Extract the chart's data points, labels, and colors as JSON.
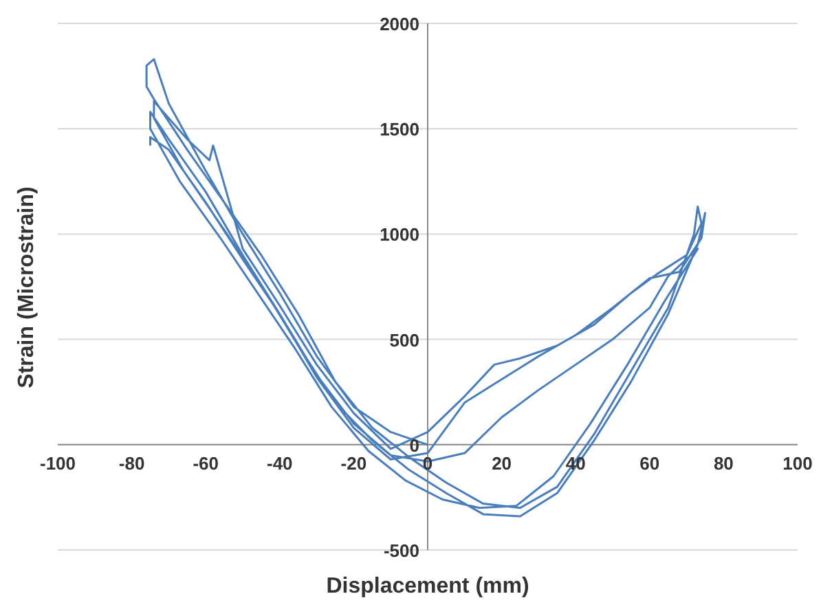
{
  "chart_data": {
    "type": "line",
    "xlabel": "Displacement (mm)",
    "ylabel": "Strain (Microstrain)",
    "xlim": [
      -100,
      100
    ],
    "ylim": [
      -500,
      2000
    ],
    "xticks": [
      -100,
      -80,
      -60,
      -40,
      -20,
      0,
      20,
      40,
      60,
      80,
      100
    ],
    "yticks": [
      -500,
      0,
      500,
      1000,
      1500,
      2000
    ],
    "grid": "y",
    "marker": "none",
    "line_style": "solid",
    "series": [
      {
        "color": "#4a7ebb",
        "x": [
          0,
          -10,
          -20,
          -30,
          -40,
          -50,
          -60,
          -70,
          -74,
          -76,
          -76,
          -74,
          -65,
          -55,
          -45,
          -35,
          -25,
          -15,
          -5,
          5,
          15,
          25,
          35,
          45,
          55,
          65,
          72,
          73,
          74,
          70,
          62,
          55,
          45,
          35,
          25,
          18,
          10,
          0,
          -10,
          -20,
          -30,
          -40,
          -50,
          -58,
          -59,
          -65,
          -74,
          -74,
          -66,
          -55,
          -45,
          -35,
          -25,
          -15,
          -5,
          5,
          15,
          25,
          35,
          45,
          55,
          65,
          73,
          75,
          74,
          68,
          60,
          50,
          40,
          30,
          20,
          10,
          0,
          -10,
          -20,
          -30,
          -40,
          -50,
          -60,
          -70,
          -75,
          -75,
          -67,
          -56,
          -46,
          -36,
          -26,
          -16,
          -6,
          4,
          14,
          24,
          34,
          44,
          54,
          64,
          73,
          65,
          60,
          50,
          40,
          30,
          20,
          10,
          0,
          -10,
          -20,
          -30,
          -40,
          -50,
          -60,
          -70,
          -75,
          -75
        ],
        "values": [
          0,
          60,
          180,
          420,
          720,
          1000,
          1300,
          1620,
          1830,
          1800,
          1700,
          1640,
          1400,
          1150,
          900,
          620,
          300,
          80,
          -60,
          -180,
          -280,
          -300,
          -200,
          50,
          350,
          650,
          1000,
          1130,
          1050,
          900,
          810,
          720,
          570,
          470,
          410,
          380,
          230,
          60,
          -20,
          150,
          380,
          660,
          930,
          1420,
          1350,
          1450,
          1630,
          1550,
          1300,
          1020,
          760,
          470,
          200,
          20,
          -120,
          -230,
          -330,
          -340,
          -230,
          20,
          300,
          620,
          950,
          1100,
          980,
          820,
          790,
          650,
          520,
          420,
          310,
          200,
          -40,
          -70,
          80,
          320,
          620,
          900,
          1200,
          1450,
          1580,
          1500,
          1250,
          980,
          720,
          460,
          180,
          -30,
          -170,
          -260,
          -300,
          -290,
          -150,
          100,
          380,
          680,
          930,
          800,
          650,
          500,
          380,
          260,
          130,
          -40,
          -80,
          -50,
          100,
          330,
          620,
          880,
          1150,
          1400,
          1460,
          1420
        ]
      }
    ]
  }
}
